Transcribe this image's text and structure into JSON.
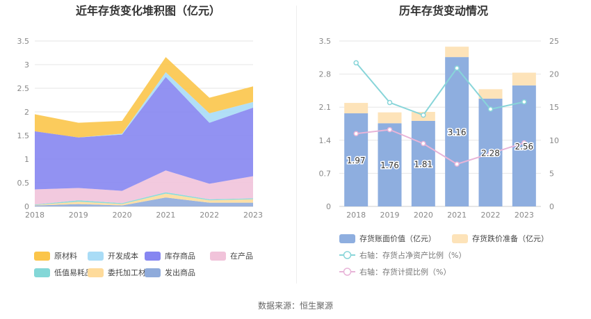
{
  "colors": {
    "raw_material": "#fbc54a",
    "dev_cost": "#a9dcf6",
    "finished_goods": "#8686f1",
    "wip": "#f1c3da",
    "low_value": "#83d7d7",
    "consigned": "#fedb9b",
    "shipped": "#8fabdb",
    "book_value": "#8eaedf",
    "impairment": "#fde3b9",
    "ratio_assets": "#88d5d9",
    "ratio_provision": "#e8b4d8",
    "axis_text": "#888888",
    "title_text": "#333333"
  },
  "chart_data": [
    {
      "type": "area",
      "title": "近年存货变化堆积图（亿元）",
      "categories": [
        "2018",
        "2019",
        "2020",
        "2021",
        "2022",
        "2023"
      ],
      "ylim": [
        0,
        3.5
      ],
      "yticks": [
        "0",
        "0.5",
        "1",
        "1.5",
        "2",
        "2.5",
        "3",
        "3.5"
      ],
      "stacked": true,
      "grid": true,
      "legend_position": "bottom",
      "series": [
        {
          "name": "发出商品",
          "color_key": "shipped",
          "values": [
            0.02,
            0.05,
            0.02,
            0.19,
            0.08,
            0.08
          ]
        },
        {
          "name": "委托加工材料",
          "color_key": "consigned",
          "values": [
            0.01,
            0.05,
            0.03,
            0.08,
            0.05,
            0.07
          ]
        },
        {
          "name": "低值易耗品",
          "color_key": "low_value",
          "values": [
            0.01,
            0.03,
            0.02,
            0.03,
            0.02,
            0.02
          ]
        },
        {
          "name": "在产品",
          "color_key": "wip",
          "values": [
            0.32,
            0.26,
            0.26,
            0.46,
            0.33,
            0.47
          ]
        },
        {
          "name": "库存商品",
          "color_key": "finished_goods",
          "values": [
            1.23,
            1.07,
            1.19,
            1.98,
            1.29,
            1.45
          ]
        },
        {
          "name": "开发成本",
          "color_key": "dev_cost",
          "values": [
            0.0,
            0.0,
            0.02,
            0.1,
            0.2,
            0.12
          ]
        },
        {
          "name": "原材料",
          "color_key": "raw_material",
          "values": [
            0.36,
            0.31,
            0.27,
            0.32,
            0.33,
            0.33
          ]
        }
      ],
      "legend": [
        {
          "name": "原材料",
          "color_key": "raw_material"
        },
        {
          "name": "开发成本",
          "color_key": "dev_cost"
        },
        {
          "name": "库存商品",
          "color_key": "finished_goods"
        },
        {
          "name": "在产品",
          "color_key": "wip"
        },
        {
          "name": "低值易耗品",
          "color_key": "low_value"
        },
        {
          "name": "委托加工材料",
          "color_key": "consigned"
        },
        {
          "name": "发出商品",
          "color_key": "shipped"
        }
      ]
    },
    {
      "type": "bar",
      "title": "历年存货变动情况",
      "categories": [
        "2018",
        "2019",
        "2020",
        "2021",
        "2022",
        "2023"
      ],
      "ylim": [
        0,
        3.5
      ],
      "yticks": [
        "0",
        "0.7",
        "1.4",
        "2.1",
        "2.8",
        "3.5"
      ],
      "y2lim": [
        0,
        25
      ],
      "y2ticks": [
        "0",
        "5",
        "10",
        "15",
        "20",
        "25"
      ],
      "stacked": true,
      "grid": true,
      "legend_position": "bottom",
      "series": [
        {
          "name": "存货账面价值（亿元）",
          "kind": "bar",
          "color_key": "book_value",
          "values": [
            1.97,
            1.76,
            1.81,
            3.16,
            2.28,
            2.56
          ],
          "labels": [
            "1.97",
            "1.76",
            "1.81",
            "3.16",
            "2.28",
            "2.56"
          ]
        },
        {
          "name": "存货跌价准备（亿元）",
          "kind": "bar",
          "color_key": "impairment",
          "values": [
            0.22,
            0.23,
            0.19,
            0.22,
            0.2,
            0.27
          ]
        },
        {
          "name": "右轴：存货占净资产比例（%）",
          "kind": "line",
          "axis": "right",
          "color_key": "ratio_assets",
          "values": [
            21.7,
            15.7,
            13.8,
            20.9,
            14.7,
            15.8
          ]
        },
        {
          "name": "右轴：存货计提比例（%）",
          "kind": "line",
          "axis": "right",
          "color_key": "ratio_provision",
          "values": [
            11.0,
            11.6,
            9.5,
            6.4,
            8.0,
            9.6
          ]
        }
      ]
    }
  ],
  "footer": {
    "source": "数据来源：恒生聚源"
  }
}
